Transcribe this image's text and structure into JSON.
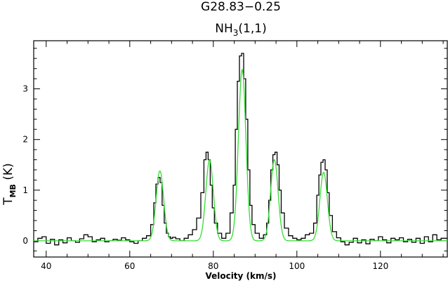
{
  "chart_data": {
    "type": "line",
    "title": "G28.83−0.25",
    "subtitle": {
      "main": "NH",
      "sub": "3",
      "rest": "(1,1)"
    },
    "xlabel": "Velocity (km/s)",
    "ylabel": {
      "main": "T",
      "sub": "MB",
      "rest": " (K)"
    },
    "xlim": [
      37,
      136
    ],
    "ylim": [
      -0.32,
      3.95
    ],
    "x_ticks": [
      40,
      60,
      80,
      100,
      120
    ],
    "y_ticks": [
      0,
      1,
      2,
      3
    ],
    "grid": false,
    "legend": "none",
    "series": [
      {
        "style": "histogram",
        "color": "#000000",
        "x": [
          37.5,
          38.5,
          39.5,
          40.5,
          41.5,
          42.5,
          43.5,
          44.5,
          45.5,
          46.5,
          47.5,
          48.5,
          49.5,
          50.5,
          51.5,
          52.5,
          53.5,
          54.5,
          55.5,
          56.5,
          57.5,
          58.5,
          59.5,
          60.5,
          61.5,
          62.5,
          63.5,
          64.5,
          65.5,
          66.0,
          66.5,
          67.0,
          67.5,
          68.0,
          68.5,
          69.0,
          69.5,
          70.0,
          70.5,
          71.5,
          72.5,
          73.5,
          74.5,
          75.5,
          76.5,
          77.5,
          78.0,
          78.5,
          79.0,
          79.5,
          80.0,
          80.5,
          81.5,
          82.5,
          83.5,
          84.5,
          85.0,
          85.5,
          86.0,
          86.5,
          87.0,
          87.5,
          88.0,
          88.5,
          89.0,
          89.5,
          90.5,
          91.5,
          92.5,
          93.0,
          93.5,
          94.0,
          94.5,
          95.0,
          95.5,
          96.0,
          96.5,
          97.5,
          98.5,
          99.5,
          100.5,
          101.5,
          102.5,
          103.5,
          104.5,
          105.0,
          105.5,
          106.0,
          106.5,
          107.0,
          107.5,
          108.0,
          109.0,
          110.0,
          111.0,
          112.0,
          113.0,
          114.0,
          115.0,
          116.0,
          117.0,
          118.0,
          119.0,
          120.0,
          121.0,
          122.0,
          123.0,
          124.0,
          125.0,
          126.0,
          127.0,
          128.0,
          129.0,
          130.0,
          131.0,
          132.0,
          133.0,
          134.0,
          135.0
        ],
        "y": [
          -0.02,
          0.05,
          0.08,
          -0.05,
          0.03,
          -0.08,
          0.02,
          -0.04,
          0.06,
          0.0,
          -0.03,
          0.04,
          0.12,
          0.08,
          -0.02,
          0.02,
          0.05,
          -0.02,
          0.0,
          0.03,
          0.01,
          0.06,
          0.02,
          -0.02,
          -0.05,
          0.0,
          0.05,
          0.1,
          0.32,
          0.75,
          1.12,
          1.25,
          1.15,
          0.7,
          0.35,
          0.15,
          0.08,
          0.05,
          0.07,
          0.04,
          0.0,
          0.05,
          0.12,
          0.22,
          0.45,
          0.95,
          1.6,
          1.75,
          1.6,
          1.1,
          0.65,
          0.35,
          0.15,
          0.05,
          0.15,
          0.55,
          1.1,
          2.2,
          3.15,
          3.65,
          3.7,
          3.2,
          2.4,
          1.4,
          0.7,
          0.32,
          0.15,
          0.05,
          0.12,
          0.35,
          0.8,
          1.4,
          1.7,
          1.75,
          1.5,
          1.0,
          0.55,
          0.25,
          0.1,
          0.05,
          0.02,
          0.05,
          0.12,
          0.15,
          0.35,
          0.9,
          1.3,
          1.55,
          1.6,
          1.4,
          0.95,
          0.5,
          0.18,
          0.06,
          -0.02,
          -0.08,
          -0.03,
          0.05,
          -0.04,
          0.02,
          -0.06,
          0.03,
          0.0,
          0.08,
          0.02,
          -0.04,
          0.05,
          0.02,
          0.06,
          -0.02,
          0.03,
          -0.03,
          0.05,
          -0.05,
          0.08,
          -0.02,
          0.12,
          0.02,
          0.05
        ]
      },
      {
        "style": "line",
        "color": "#33dd33",
        "model": "gaussian_sum",
        "components": [
          {
            "amplitude": 1.38,
            "center": 67.2,
            "sigma": 0.9
          },
          {
            "amplitude": 1.6,
            "center": 79.1,
            "sigma": 0.9
          },
          {
            "amplitude": 3.38,
            "center": 86.9,
            "sigma": 0.9
          },
          {
            "amplitude": 1.6,
            "center": 94.6,
            "sigma": 0.9
          },
          {
            "amplitude": 1.35,
            "center": 106.4,
            "sigma": 0.9
          }
        ]
      }
    ]
  }
}
